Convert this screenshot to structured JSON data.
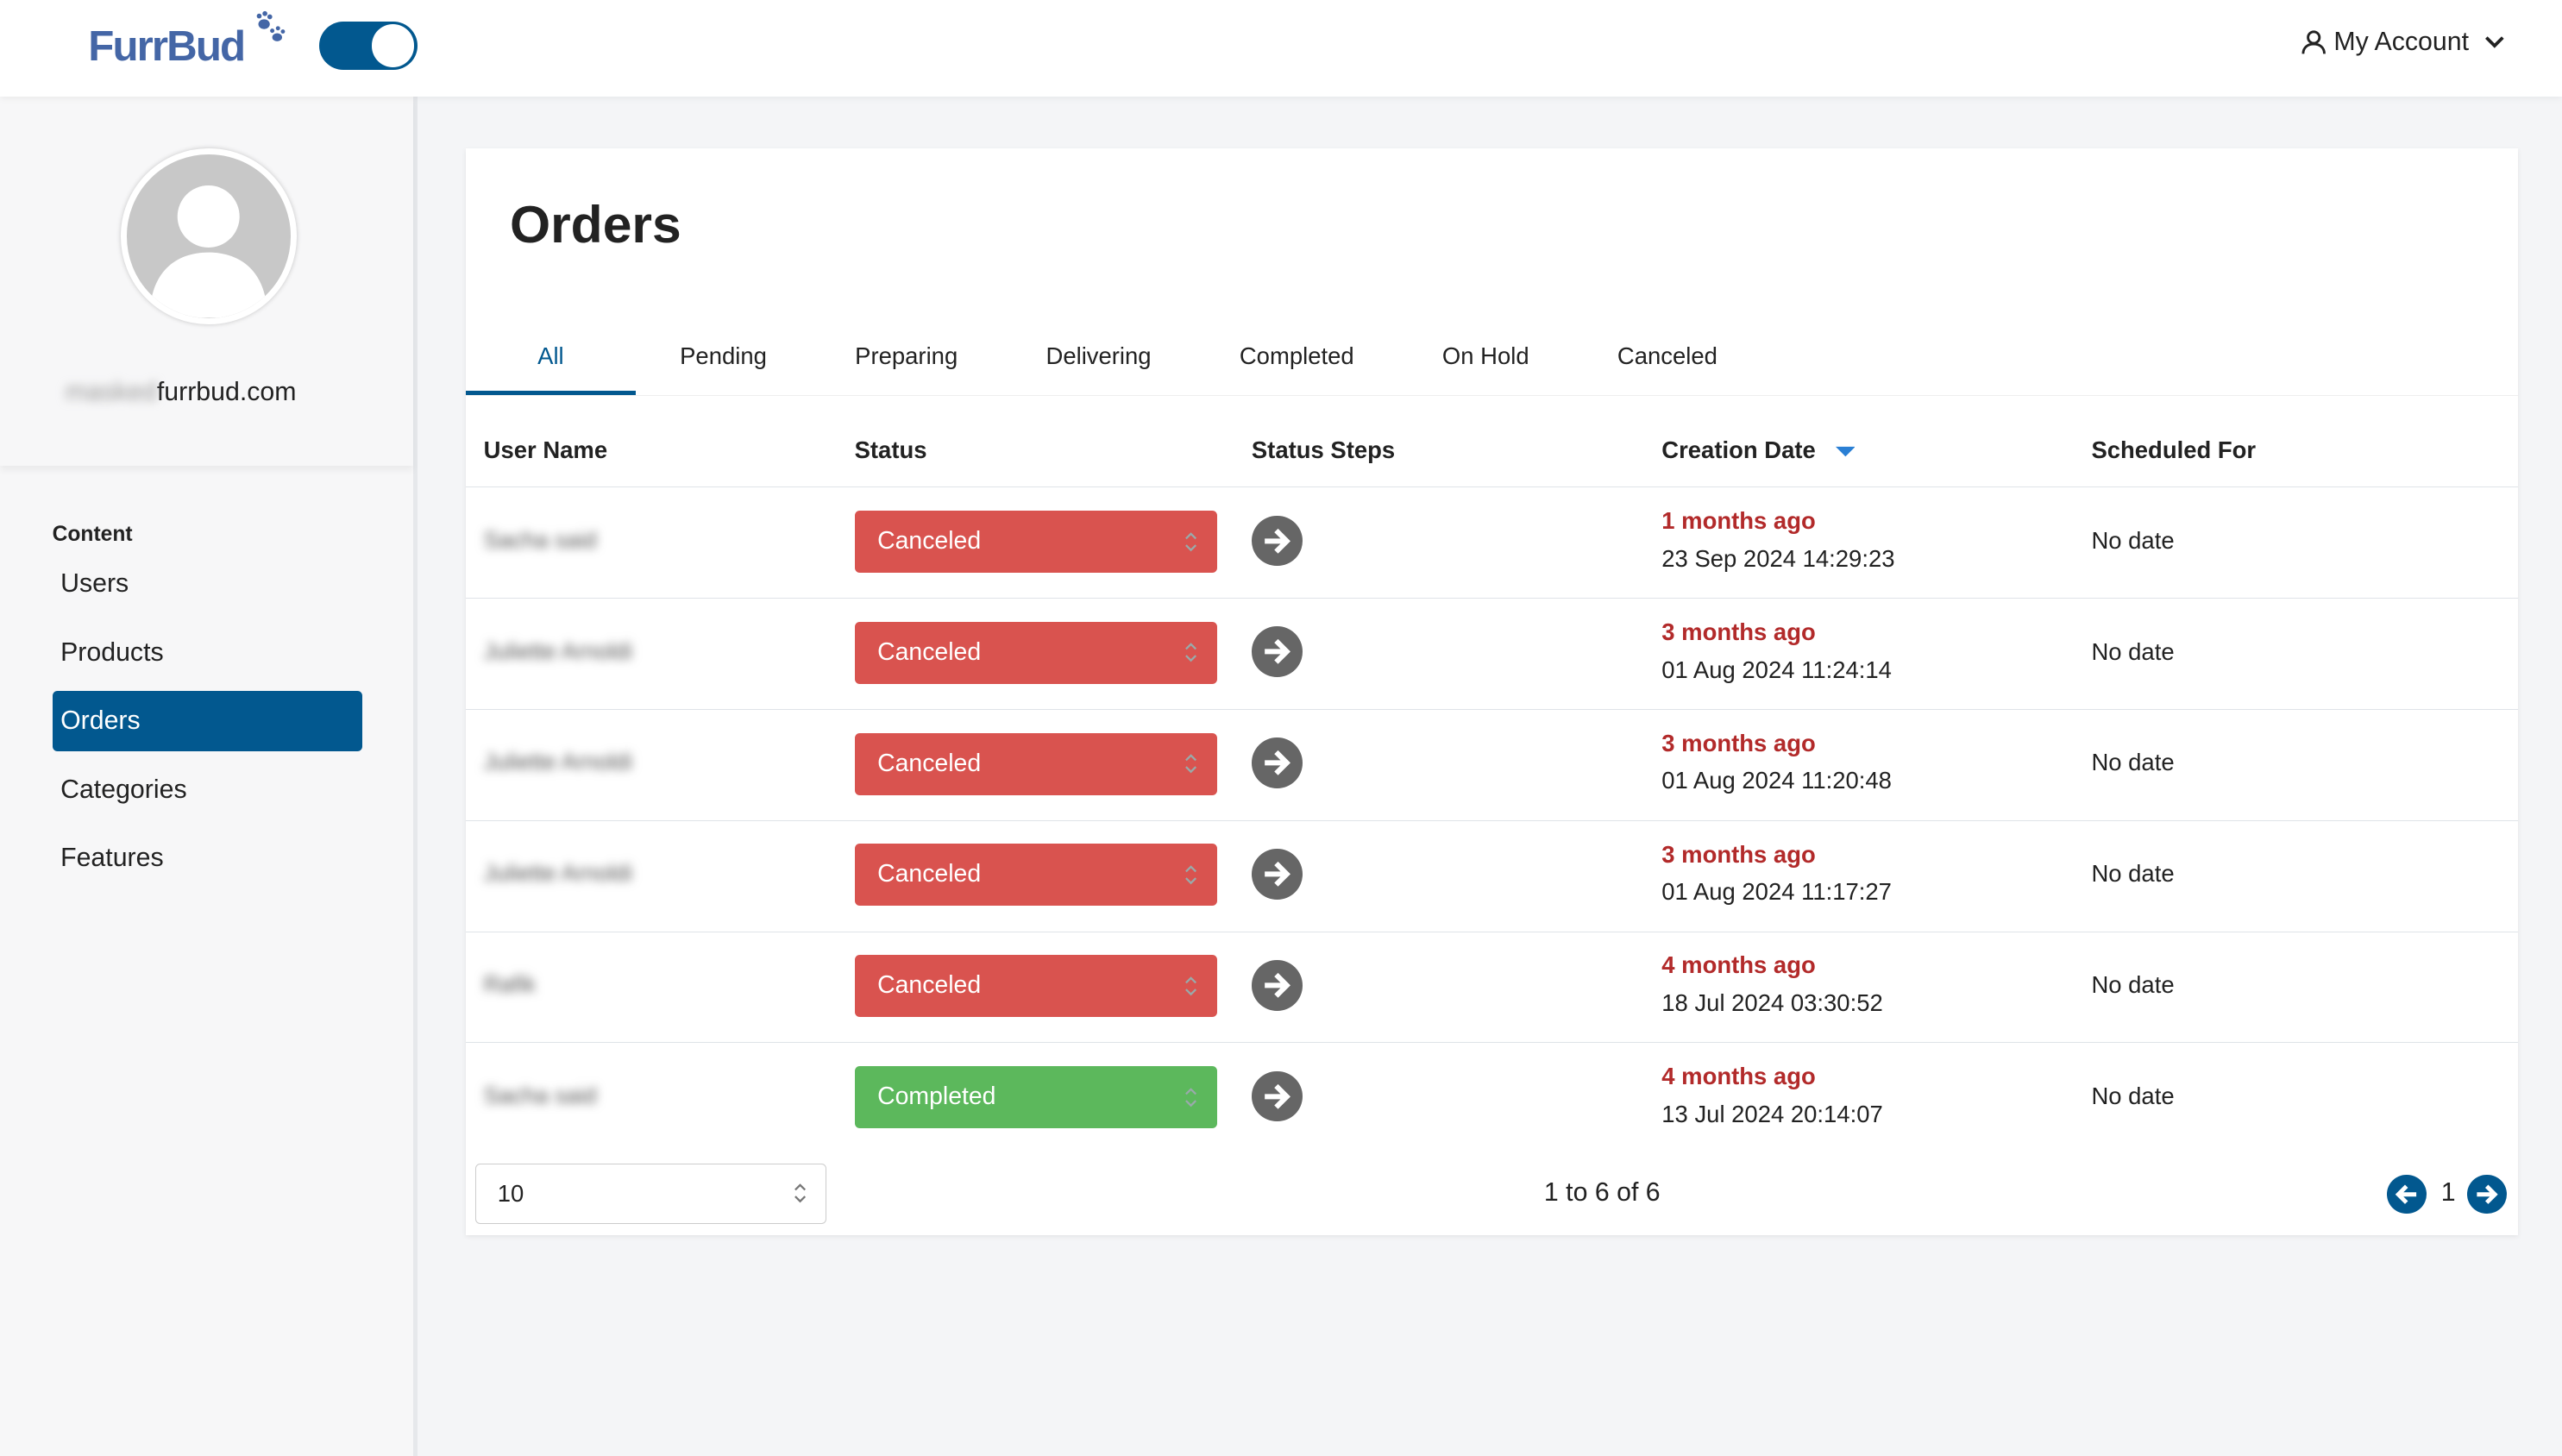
{
  "header": {
    "logo": "FurrBud",
    "account": "My Account"
  },
  "sidebar": {
    "email_hidden": "masked",
    "email_domain": "furrbud.com",
    "section": "Content",
    "items": [
      "Users",
      "Products",
      "Orders",
      "Categories",
      "Features"
    ],
    "active": "Orders"
  },
  "main": {
    "title": "Orders",
    "tabs": [
      "All",
      "Pending",
      "Preparing",
      "Delivering",
      "Completed",
      "On Hold",
      "Canceled"
    ],
    "columns": [
      "User Name",
      "Status",
      "Status Steps",
      "Creation Date",
      "Scheduled For"
    ],
    "rows": [
      {
        "name": "Sacha said",
        "status": "Canceled",
        "ago": "1 months ago",
        "date": "23 Sep 2024 14:29:23",
        "scheduled": "No date"
      },
      {
        "name": "Juliette Arnoldi",
        "status": "Canceled",
        "ago": "3 months ago",
        "date": "01 Aug 2024 11:24:14",
        "scheduled": "No date"
      },
      {
        "name": "Juliette Arnoldi",
        "status": "Canceled",
        "ago": "3 months ago",
        "date": "01 Aug 2024 11:20:48",
        "scheduled": "No date"
      },
      {
        "name": "Juliette Arnoldi",
        "status": "Canceled",
        "ago": "3 months ago",
        "date": "01 Aug 2024 11:17:27",
        "scheduled": "No date"
      },
      {
        "name": "Rafik",
        "status": "Canceled",
        "ago": "4 months ago",
        "date": "18 Jul 2024 03:30:52",
        "scheduled": "No date"
      },
      {
        "name": "Sacha said",
        "status": "Completed",
        "ago": "4 months ago",
        "date": "13 Jul 2024 20:14:07",
        "scheduled": "No date"
      }
    ],
    "page_size": "10",
    "range": "1 to 6 of 6",
    "page": "1"
  },
  "colors": {
    "primary": "#02588f",
    "canceled": "#d9534f",
    "completed": "#5cb85c",
    "ago": "#b22a2a"
  }
}
